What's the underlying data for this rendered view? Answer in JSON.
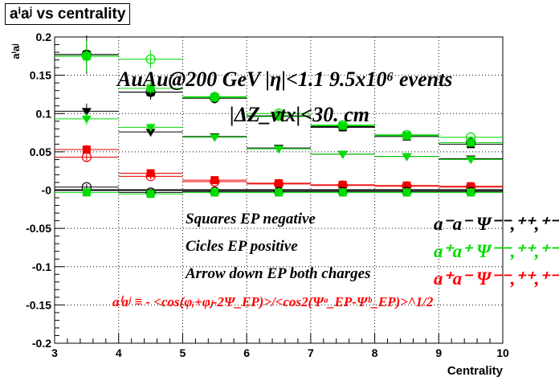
{
  "title_box": "aⁱaʲ vs centrality",
  "annotations": {
    "line1": "AuAu@200 GeV |η|<1.1 9.5x10⁶ events",
    "line2": "|ΔZ_vtx|<30. cm",
    "squares": "Squares EP negative",
    "circles": "Cicles EP positive",
    "arrows": "Arrow down EP both charges",
    "formula": "aⁱaʲ ≡ - <cos(φᵢ+φⱼ-2Ψ_EP)>/<cos2(Ψᵃ_EP-Ψᵇ_EP)>^1/2"
  },
  "legend": {
    "minus_minus": "a⁻a⁻  Ψ⁻⁻,⁺⁺,⁺⁻",
    "plus_plus": "a⁺a⁺  Ψ⁻⁻,⁺⁺,⁺⁻",
    "plus_minus": "a⁺a⁻  Ψ⁻⁻,⁺⁺,⁺⁻"
  },
  "chart_data": {
    "type": "scatter",
    "title": "aⁱaʲ vs centrality",
    "xlabel": "Centrality",
    "ylabel": "aⁱaʲ",
    "xlim": [
      3,
      10
    ],
    "ylim": [
      -0.2,
      0.2
    ],
    "xticks": [
      3,
      4,
      5,
      6,
      7,
      8,
      9,
      10
    ],
    "yticks": [
      -0.2,
      -0.15,
      -0.1,
      -0.05,
      0,
      0.05,
      0.1,
      0.15,
      0.2
    ],
    "x": [
      3.5,
      4.5,
      5.5,
      6.5,
      7.5,
      8.5,
      9.5
    ],
    "series": [
      {
        "name": "a⁻a⁻ squares",
        "color": "#000000",
        "marker": "square",
        "values": [
          0.177,
          0.128,
          0.121,
          0.096,
          0.082,
          0.07,
          0.06
        ],
        "errors": [
          0.012,
          0.008,
          0.006,
          0.004,
          0.003,
          0.002,
          0.002
        ]
      },
      {
        "name": "a⁻a⁻ circles",
        "color": "#000000",
        "marker": "circle",
        "values": [
          0.177,
          0.128,
          0.12,
          0.097,
          0.083,
          0.072,
          0.062
        ],
        "errors": [
          0.025,
          0.01,
          0.007,
          0.004,
          0.003,
          0.002,
          0.002
        ]
      },
      {
        "name": "a⁻a⁻ arrows",
        "color": "#000000",
        "marker": "triangle-down",
        "values": [
          0.103,
          0.076,
          0.07,
          0.055,
          0.047,
          0.044,
          0.041
        ],
        "errors": [
          0.01,
          0.006,
          0.004,
          0.003,
          0.002,
          0.002,
          0.002
        ]
      },
      {
        "name": "a⁺a⁺ squares",
        "color": "#00dd00",
        "marker": "square",
        "values": [
          0.175,
          0.133,
          0.121,
          0.096,
          0.084,
          0.071,
          0.062
        ],
        "errors": [
          0.012,
          0.008,
          0.005,
          0.004,
          0.003,
          0.002,
          0.002
        ]
      },
      {
        "name": "a⁺a⁺ circles",
        "color": "#00dd00",
        "marker": "circle",
        "values": [
          0.175,
          0.171,
          0.122,
          0.1,
          0.085,
          0.072,
          0.069
        ],
        "errors": [
          0.02,
          0.012,
          0.007,
          0.005,
          0.003,
          0.002,
          0.002
        ]
      },
      {
        "name": "a⁺a⁺ arrows",
        "color": "#00dd00",
        "marker": "triangle-down",
        "values": [
          0.093,
          0.082,
          0.069,
          0.054,
          0.047,
          0.044,
          0.04
        ],
        "errors": [
          0.008,
          0.005,
          0.004,
          0.003,
          0.002,
          0.002,
          0.002
        ]
      },
      {
        "name": "a⁺a⁻ squares",
        "color": "#ee0000",
        "marker": "square",
        "values": [
          0.053,
          0.022,
          0.013,
          0.009,
          0.007,
          0.006,
          0.005
        ],
        "errors": [
          0.006,
          0.004,
          0.003,
          0.002,
          0.002,
          0.001,
          0.001
        ]
      },
      {
        "name": "a⁺a⁻ circles",
        "color": "#ee0000",
        "marker": "circle",
        "values": [
          0.043,
          0.018,
          0.011,
          0.008,
          0.006,
          0.005,
          0.004
        ],
        "errors": [
          0.006,
          0.004,
          0.003,
          0.002,
          0.002,
          0.001,
          0.001
        ]
      },
      {
        "name": "a⁻a⁻ near zero",
        "color": "#000000",
        "marker": "circle",
        "values": [
          0.004,
          -0.003,
          -0.002,
          -0.002,
          -0.002,
          -0.002,
          -0.002
        ],
        "errors": [
          0.004,
          0.003,
          0.002,
          0.002,
          0.001,
          0.001,
          0.001
        ]
      },
      {
        "name": "a⁺a⁺ near zero",
        "color": "#00dd00",
        "marker": "square",
        "values": [
          -0.003,
          -0.005,
          -0.003,
          -0.003,
          -0.003,
          -0.003,
          -0.003
        ],
        "errors": [
          0.004,
          0.003,
          0.002,
          0.002,
          0.001,
          0.001,
          0.001
        ]
      }
    ]
  }
}
